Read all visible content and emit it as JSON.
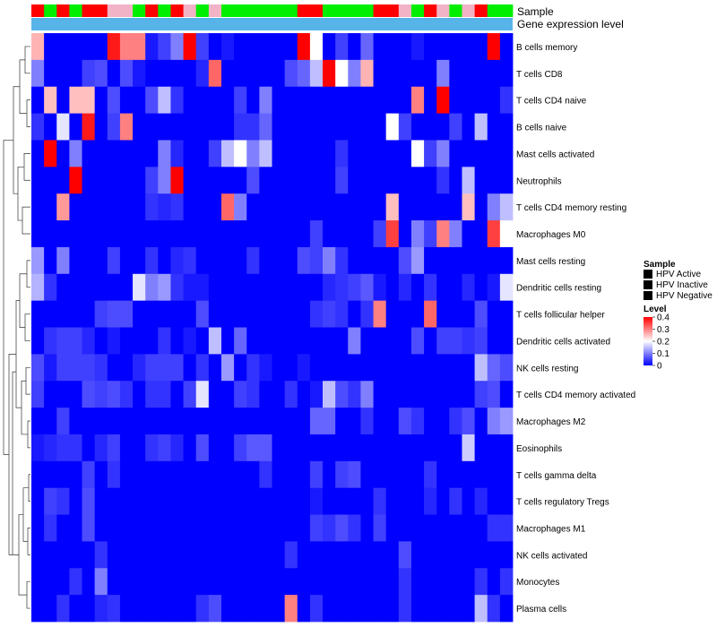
{
  "chart_data": {
    "type": "heatmap",
    "title": "",
    "annotation_labels": [
      "Sample",
      "Gene expression level"
    ],
    "rows": [
      "B cells memory",
      "T cells CD8",
      "T cells CD4 naive",
      "B cells naive",
      "Mast cells activated",
      "Neutrophils",
      "T cells CD4 memory resting",
      "Macrophages M0",
      "Mast cells resting",
      "Dendritic cells resting",
      "T cells follicular helper",
      "Dendritic cells activated",
      "NK cells resting",
      "T cells CD4 memory activated",
      "Macrophages M2",
      "Eosinophils",
      "T cells gamma delta",
      "T cells regulatory  Tregs",
      "Macrophages M1",
      "NK cells activated",
      "Monocytes",
      "Plasma cells"
    ],
    "sample_groups": [
      "A",
      "N",
      "A",
      "N",
      "A",
      "A",
      "I",
      "I",
      "N",
      "A",
      "N",
      "A",
      "I",
      "N",
      "I",
      "N",
      "N",
      "N",
      "N",
      "N",
      "N",
      "A",
      "A",
      "N",
      "N",
      "N",
      "N",
      "A",
      "A",
      "I",
      "N",
      "A",
      "I",
      "N",
      "I",
      "A",
      "N",
      "N"
    ],
    "values": [
      [
        0.26,
        0,
        0,
        0,
        0,
        0,
        0.38,
        0.3,
        0.3,
        0.02,
        0.05,
        0.1,
        0.4,
        0.05,
        0,
        0.02,
        0,
        0,
        0,
        0,
        0,
        0.4,
        0.2,
        0,
        0.05,
        0,
        0.08,
        0,
        0,
        0,
        0.02,
        0,
        0,
        0,
        0,
        0,
        0.4,
        0
      ],
      [
        0.1,
        0,
        0,
        0,
        0.05,
        0.06,
        0,
        0.06,
        0.02,
        0,
        0,
        0,
        0,
        0.03,
        0.32,
        0,
        0,
        0,
        0,
        0,
        0.06,
        0.08,
        0.15,
        0.4,
        0.2,
        0.1,
        0.26,
        0,
        0,
        0,
        0,
        0,
        0.1,
        0,
        0,
        0,
        0,
        0
      ],
      [
        0,
        0.25,
        0,
        0.25,
        0.25,
        0,
        0.06,
        0,
        0,
        0.06,
        0.15,
        0.04,
        0,
        0,
        0,
        0,
        0.05,
        0,
        0.1,
        0,
        0,
        0,
        0,
        0,
        0,
        0,
        0,
        0,
        0,
        0,
        0.3,
        0,
        0.4,
        0,
        0,
        0,
        0,
        0.04
      ],
      [
        0.04,
        0,
        0.18,
        0,
        0.38,
        0,
        0.05,
        0.3,
        0,
        0,
        0,
        0,
        0,
        0,
        0,
        0,
        0.04,
        0.04,
        0.08,
        0,
        0,
        0,
        0,
        0,
        0,
        0,
        0,
        0,
        0.2,
        0.05,
        0,
        0,
        0,
        0.05,
        0,
        0.15,
        0,
        0
      ],
      [
        0,
        0.4,
        0,
        0.1,
        0,
        0,
        0,
        0,
        0,
        0,
        0.1,
        0.03,
        0,
        0,
        0.05,
        0.15,
        0.2,
        0.1,
        0.15,
        0,
        0,
        0,
        0,
        0,
        0.04,
        0,
        0,
        0,
        0,
        0,
        0.2,
        0.05,
        0.1,
        0,
        0,
        0,
        0,
        0
      ],
      [
        0,
        0,
        0,
        0.4,
        0,
        0,
        0,
        0,
        0,
        0.05,
        0.1,
        0.4,
        0,
        0,
        0,
        0,
        0,
        0.06,
        0,
        0,
        0,
        0,
        0,
        0,
        0.05,
        0,
        0,
        0,
        0,
        0,
        0,
        0,
        0.04,
        0,
        0.15,
        0,
        0,
        0
      ],
      [
        0,
        0,
        0.28,
        0,
        0,
        0,
        0,
        0,
        0,
        0.04,
        0.03,
        0.04,
        0,
        0,
        0,
        0.32,
        0.1,
        0,
        0,
        0,
        0,
        0,
        0,
        0,
        0,
        0,
        0,
        0,
        0.25,
        0,
        0,
        0,
        0,
        0,
        0.25,
        0,
        0.1,
        0.15
      ],
      [
        0,
        0,
        0,
        0,
        0,
        0,
        0,
        0,
        0,
        0,
        0,
        0,
        0,
        0,
        0,
        0,
        0,
        0,
        0,
        0,
        0,
        0,
        0.05,
        0,
        0,
        0,
        0,
        0.05,
        0.35,
        0,
        0.1,
        0.05,
        0.3,
        0.1,
        0,
        0,
        0.35,
        0.2
      ],
      [
        0.12,
        0,
        0.1,
        0,
        0,
        0,
        0.05,
        0,
        0,
        0.04,
        0,
        0.03,
        0.04,
        0,
        0,
        0,
        0,
        0.04,
        0,
        0,
        0,
        0.06,
        0.05,
        0.1,
        0.04,
        0,
        0,
        0,
        0,
        0.06,
        0.12,
        0,
        0,
        0,
        0,
        0,
        0,
        0
      ],
      [
        0.14,
        0.04,
        0,
        0,
        0,
        0,
        0,
        0,
        0.18,
        0.1,
        0.12,
        0.04,
        0.02,
        0.02,
        0,
        0,
        0,
        0,
        0,
        0,
        0,
        0,
        0,
        0.03,
        0.04,
        0.05,
        0.07,
        0.02,
        0,
        0.03,
        0,
        0.04,
        0,
        0,
        0.03,
        0,
        0.02,
        0.18
      ],
      [
        0,
        0,
        0,
        0,
        0,
        0.05,
        0.06,
        0.06,
        0,
        0,
        0,
        0,
        0,
        0.06,
        0,
        0,
        0,
        0,
        0,
        0,
        0,
        0,
        0.04,
        0.05,
        0.04,
        0,
        0.04,
        0.3,
        0,
        0,
        0,
        0.32,
        0,
        0,
        0,
        0.06,
        0,
        0
      ],
      [
        0,
        0.04,
        0.05,
        0.05,
        0.03,
        0,
        0.02,
        0,
        0,
        0,
        0.04,
        0,
        0.02,
        0,
        0.15,
        0,
        0.08,
        0,
        0,
        0,
        0,
        0,
        0,
        0,
        0,
        0.1,
        0,
        0,
        0,
        0,
        0.06,
        0,
        0.05,
        0.05,
        0.04,
        0.05,
        0,
        0
      ],
      [
        0.06,
        0.02,
        0.05,
        0.05,
        0.05,
        0.04,
        0,
        0,
        0.03,
        0.05,
        0.05,
        0.05,
        0,
        0.04,
        0,
        0.12,
        0,
        0.04,
        0.02,
        0,
        0,
        0.02,
        0,
        0,
        0,
        0,
        0,
        0,
        0,
        0,
        0,
        0,
        0,
        0,
        0,
        0.15,
        0.08,
        0.06
      ],
      [
        0.05,
        0,
        0,
        0,
        0.06,
        0.05,
        0.06,
        0.04,
        0,
        0.04,
        0.04,
        0,
        0.05,
        0.18,
        0,
        0,
        0.05,
        0.04,
        0,
        0,
        0.04,
        0,
        0.02,
        0.15,
        0.06,
        0.04,
        0.1,
        0,
        0,
        0,
        0,
        0,
        0,
        0,
        0,
        0.05,
        0.06,
        0
      ],
      [
        0,
        0,
        0.05,
        0,
        0,
        0,
        0,
        0,
        0,
        0,
        0,
        0,
        0,
        0,
        0,
        0,
        0,
        0,
        0,
        0,
        0,
        0,
        0.08,
        0.08,
        0,
        0,
        0.04,
        0,
        0,
        0.06,
        0.04,
        0,
        0,
        0.04,
        0.06,
        0,
        0.1,
        0.12
      ],
      [
        0.02,
        0.03,
        0.04,
        0.04,
        0,
        0.03,
        0.05,
        0,
        0,
        0.04,
        0.05,
        0.03,
        0,
        0.06,
        0,
        0,
        0.05,
        0.07,
        0.07,
        0,
        0,
        0,
        0,
        0,
        0,
        0,
        0,
        0,
        0,
        0,
        0,
        0,
        0,
        0,
        0.16,
        0,
        0,
        0
      ],
      [
        0,
        0,
        0,
        0,
        0.05,
        0,
        0.04,
        0,
        0,
        0,
        0,
        0,
        0,
        0,
        0,
        0,
        0,
        0,
        0.04,
        0,
        0,
        0,
        0.05,
        0,
        0.05,
        0.06,
        0,
        0,
        0,
        0,
        0,
        0.04,
        0,
        0,
        0,
        0,
        0,
        0
      ],
      [
        0,
        0.05,
        0.04,
        0,
        0.06,
        0,
        0,
        0,
        0,
        0,
        0,
        0,
        0,
        0,
        0,
        0,
        0,
        0,
        0,
        0,
        0,
        0,
        0.02,
        0,
        0,
        0,
        0,
        0.04,
        0,
        0,
        0,
        0.03,
        0,
        0.04,
        0,
        0.03,
        0,
        0
      ],
      [
        0,
        0.04,
        0,
        0,
        0.06,
        0,
        0,
        0,
        0,
        0,
        0,
        0,
        0,
        0,
        0,
        0,
        0,
        0,
        0,
        0,
        0,
        0,
        0.05,
        0.04,
        0.06,
        0.04,
        0,
        0.05,
        0,
        0,
        0,
        0,
        0,
        0,
        0,
        0,
        0.04,
        0.04
      ],
      [
        0,
        0,
        0,
        0,
        0,
        0.04,
        0,
        0,
        0,
        0,
        0,
        0,
        0,
        0,
        0,
        0,
        0,
        0,
        0,
        0,
        0.04,
        0,
        0,
        0,
        0,
        0,
        0,
        0,
        0,
        0.06,
        0,
        0,
        0,
        0,
        0,
        0,
        0,
        0
      ],
      [
        0,
        0,
        0,
        0.04,
        0,
        0.1,
        0,
        0,
        0,
        0,
        0,
        0,
        0,
        0,
        0,
        0,
        0,
        0,
        0,
        0,
        0,
        0,
        0,
        0,
        0,
        0,
        0,
        0,
        0,
        0.04,
        0,
        0,
        0,
        0,
        0,
        0.04,
        0,
        0.04
      ],
      [
        0,
        0,
        0.04,
        0,
        0,
        0.03,
        0.04,
        0,
        0,
        0,
        0,
        0,
        0,
        0.04,
        0.06,
        0,
        0,
        0,
        0,
        0,
        0.3,
        0,
        0.04,
        0,
        0,
        0,
        0,
        0,
        0,
        0.04,
        0,
        0,
        0,
        0,
        0,
        0.15,
        0.04,
        0
      ]
    ],
    "expression_bar": 0.2,
    "color_scale": {
      "domain": [
        0,
        0.2,
        0.4
      ],
      "colors": [
        "#0000FF",
        "#FFFFFF",
        "#FF0000"
      ]
    },
    "legend": {
      "sample": {
        "title": "Sample",
        "entries": [
          {
            "key": "A",
            "label": "HPV Active",
            "color": "#FF0000"
          },
          {
            "key": "I",
            "label": "HPV Inactive",
            "color": "#F2B3C6"
          },
          {
            "key": "N",
            "label": "HPV Negative",
            "color": "#00EE00"
          }
        ]
      },
      "level": {
        "title": "Level",
        "ticks": [
          "0.4",
          "0.3",
          "0.2",
          "0.1",
          "0"
        ],
        "tick_values": [
          0.4,
          0.3,
          0.2,
          0.1,
          0
        ]
      }
    }
  }
}
